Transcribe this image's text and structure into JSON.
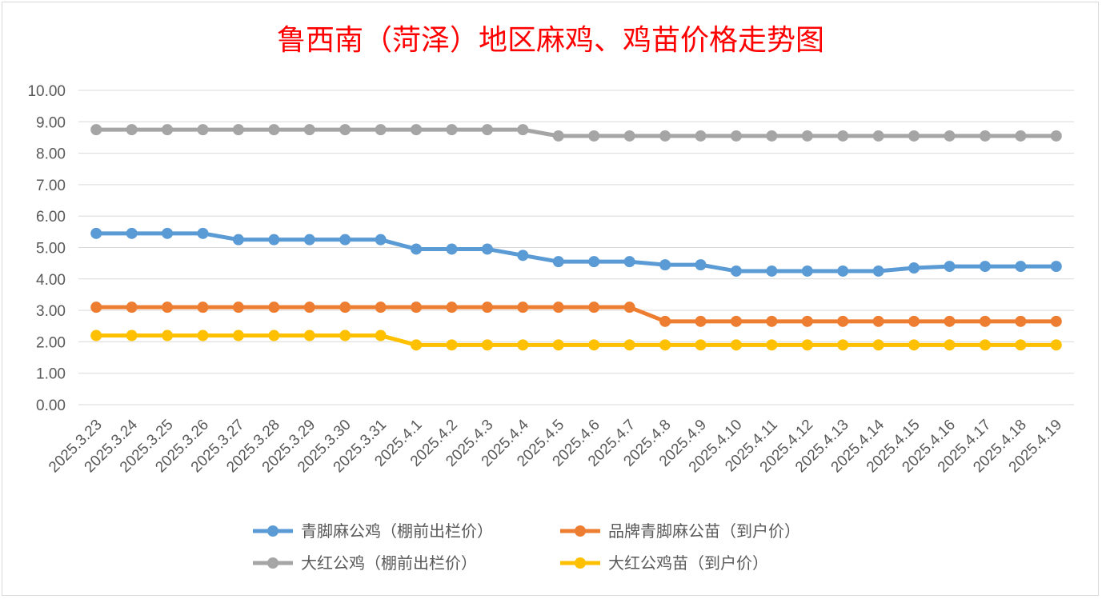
{
  "chart_data": {
    "type": "line",
    "title": "鲁西南（菏泽）地区麻鸡、鸡苗价格走势图",
    "xlabel": "",
    "ylabel": "",
    "ylim": [
      0,
      10
    ],
    "yticks": [
      "0.00",
      "1.00",
      "2.00",
      "3.00",
      "4.00",
      "5.00",
      "6.00",
      "7.00",
      "8.00",
      "9.00",
      "10.00"
    ],
    "categories": [
      "2025.3.23",
      "2025.3.24",
      "2025.3.25",
      "2025.3.26",
      "2025.3.27",
      "2025.3.28",
      "2025.3.29",
      "2025.3.30",
      "2025.3.31",
      "2025.4.1",
      "2025.4.2",
      "2025.4.3",
      "2025.4.4",
      "2025.4.5",
      "2025.4.6",
      "2025.4.7",
      "2025.4.8",
      "2025.4.9",
      "2025.4.10",
      "2025.4.11",
      "2025.4.12",
      "2025.4.13",
      "2025.4.14",
      "2025.4.15",
      "2025.4.16",
      "2025.4.17",
      "2025.4.18",
      "2025.4.19"
    ],
    "series": [
      {
        "name": "青脚麻公鸡（棚前出栏价）",
        "color": "#5b9bd5",
        "values": [
          5.45,
          5.45,
          5.45,
          5.45,
          5.25,
          5.25,
          5.25,
          5.25,
          5.25,
          4.95,
          4.95,
          4.95,
          4.75,
          4.55,
          4.55,
          4.55,
          4.45,
          4.45,
          4.25,
          4.25,
          4.25,
          4.25,
          4.25,
          4.35,
          4.4,
          4.4,
          4.4,
          4.4
        ]
      },
      {
        "name": "品牌青脚麻公苗（到户价）",
        "color": "#ed7d31",
        "values": [
          3.1,
          3.1,
          3.1,
          3.1,
          3.1,
          3.1,
          3.1,
          3.1,
          3.1,
          3.1,
          3.1,
          3.1,
          3.1,
          3.1,
          3.1,
          3.1,
          2.65,
          2.65,
          2.65,
          2.65,
          2.65,
          2.65,
          2.65,
          2.65,
          2.65,
          2.65,
          2.65,
          2.65
        ]
      },
      {
        "name": "大红公鸡（棚前出栏价）",
        "color": "#a5a5a5",
        "values": [
          8.75,
          8.75,
          8.75,
          8.75,
          8.75,
          8.75,
          8.75,
          8.75,
          8.75,
          8.75,
          8.75,
          8.75,
          8.75,
          8.55,
          8.55,
          8.55,
          8.55,
          8.55,
          8.55,
          8.55,
          8.55,
          8.55,
          8.55,
          8.55,
          8.55,
          8.55,
          8.55,
          8.55
        ]
      },
      {
        "name": "大红公鸡苗（到户价）",
        "color": "#ffc000",
        "values": [
          2.2,
          2.2,
          2.2,
          2.2,
          2.2,
          2.2,
          2.2,
          2.2,
          2.2,
          1.9,
          1.9,
          1.9,
          1.9,
          1.9,
          1.9,
          1.9,
          1.9,
          1.9,
          1.9,
          1.9,
          1.9,
          1.9,
          1.9,
          1.9,
          1.9,
          1.9,
          1.9,
          1.9
        ]
      }
    ],
    "legend_position": "bottom",
    "grid": true
  }
}
